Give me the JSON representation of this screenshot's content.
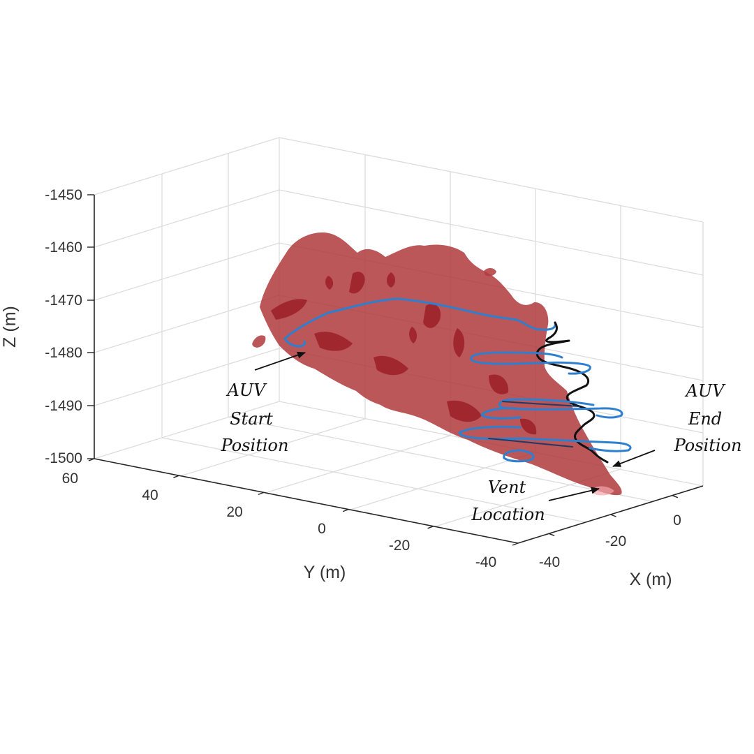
{
  "chart_data": {
    "type": "3d-surface-trajectory",
    "xlabel": "X (m)",
    "ylabel": "Y (m)",
    "zlabel": "Z (m)",
    "x_ticks": [
      "-40",
      "-20",
      "0"
    ],
    "y_ticks": [
      "60",
      "40",
      "20",
      "0",
      "-20",
      "-40"
    ],
    "z_ticks": [
      "-1450",
      "-1460",
      "-1470",
      "-1480",
      "-1490",
      "-1500"
    ],
    "zlim": [
      -1500,
      -1450
    ],
    "grid": true,
    "colors": {
      "plume_surface": "#b03a3e",
      "plume_shadow": "#9c1f27",
      "trajectory_blue": "#2d7fd0",
      "trajectory_black": "#111111"
    },
    "annotations": [
      {
        "id": "start",
        "lines": [
          "AUV",
          "Start",
          "Position"
        ]
      },
      {
        "id": "end",
        "lines": [
          "AUV",
          "End",
          "Position"
        ]
      },
      {
        "id": "vent",
        "lines": [
          "Vent",
          "Location"
        ]
      }
    ]
  }
}
